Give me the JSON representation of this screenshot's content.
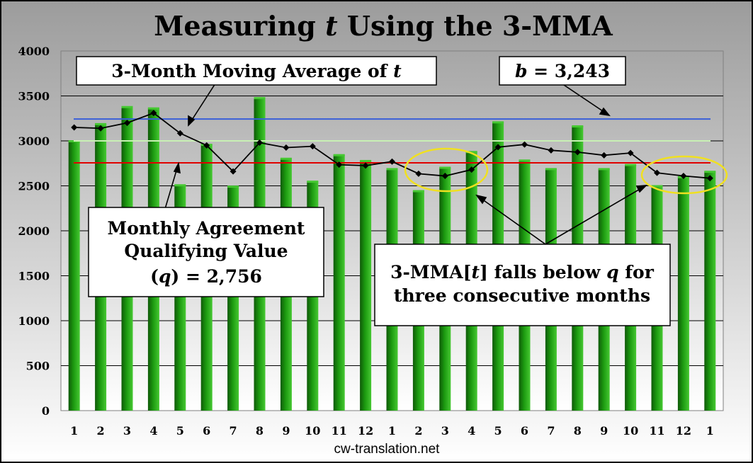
{
  "chart_data": {
    "type": "bar",
    "title_prefix": "Measuring ",
    "title_var": "t",
    "title_suffix": " Using the 3-MMA",
    "categories": [
      "1",
      "2",
      "3",
      "4",
      "5",
      "6",
      "7",
      "8",
      "9",
      "10",
      "11",
      "12",
      "1",
      "2",
      "3",
      "4",
      "5",
      "6",
      "7",
      "8",
      "9",
      "10",
      "11",
      "12",
      "1"
    ],
    "ylim": [
      0,
      4000
    ],
    "yticks": [
      "0",
      "500",
      "1000",
      "1500",
      "2000",
      "2500",
      "3000",
      "3500",
      "4000"
    ],
    "ytick_values": [
      0,
      500,
      1000,
      1500,
      2000,
      2500,
      3000,
      3500,
      4000
    ],
    "grid": true,
    "series": [
      {
        "type": "bar",
        "values": [
          3000,
          3190,
          3380,
          3365,
          2510,
          2960,
          2495,
          3480,
          2805,
          2550,
          2845,
          2780,
          2690,
          2445,
          2705,
          2880,
          3210,
          2785,
          2690,
          3165,
          2690,
          2735,
          2500,
          2600,
          2660
        ]
      },
      {
        "type": "line",
        "values": [
          3150,
          3140,
          3200,
          3310,
          3085,
          2950,
          2660,
          2980,
          2925,
          2940,
          2735,
          2725,
          2770,
          2635,
          2610,
          2680,
          2930,
          2960,
          2895,
          2875,
          2840,
          2865,
          2645,
          2610,
          2585
        ]
      }
    ],
    "reference_lines": [
      {
        "value": 3243,
        "color": "#3a5fd8"
      },
      {
        "value": 3000,
        "color": "#c8f0b4"
      },
      {
        "value": 2756,
        "color": "#e00000"
      }
    ],
    "annotations": {
      "mma_label": {
        "text": "3-Month Moving Average of ",
        "var": "t"
      },
      "b_label": {
        "var": "b",
        "text": " = 3,243"
      },
      "q_label": {
        "line1": "Monthly Agreement",
        "line2": "Qualifying Value",
        "line3_var": "q",
        "line3_text": " = 2,756"
      },
      "falls_label": {
        "line1_a": "3-MMA[",
        "line1_var1": "t",
        "line1_b": "] falls below ",
        "line1_var2": "q",
        "line1_c": " for",
        "line2": "three consecutive months"
      }
    },
    "credit": "cw-translation.net",
    "colors": {
      "bar": "#1c9a10",
      "bar_dark": "#0f5a08",
      "bar_light": "#46c832",
      "line": "#000000",
      "highlight": "#f0e020"
    }
  }
}
